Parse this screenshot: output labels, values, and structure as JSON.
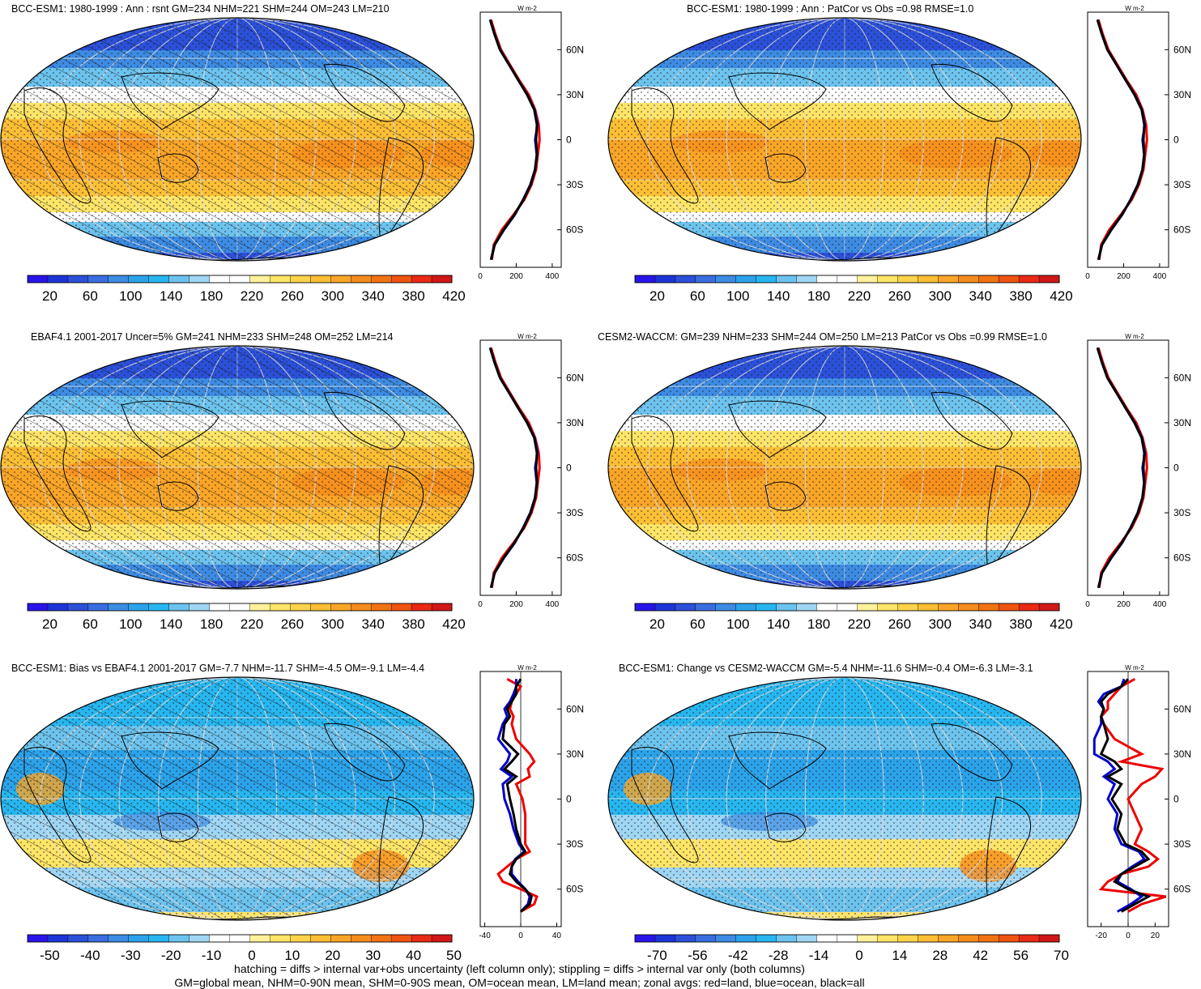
{
  "panels": [
    {
      "title": "BCC-ESM1: 1980-1999 : Ann : rsnt GM=234 NHM=221 SHM=244 OM=243 LM=210",
      "kind": "abs",
      "hatch": true,
      "colorbar_ticks": [
        "20",
        "60",
        "100",
        "140",
        "180",
        "220",
        "260",
        "300",
        "340",
        "380",
        "420"
      ],
      "profile_xticks": [
        "0",
        "200",
        "400"
      ],
      "profile_xlim": [
        0,
        450
      ],
      "profile_unit": "W m-2"
    },
    {
      "title": "BCC-ESM1: 1980-1999 : Ann : PatCor vs Obs =0.98 RMSE=1.0",
      "kind": "abs",
      "hatch": false,
      "colorbar_ticks": [
        "20",
        "60",
        "100",
        "140",
        "180",
        "220",
        "260",
        "300",
        "340",
        "380",
        "420"
      ],
      "profile_xticks": [
        "0",
        "200",
        "400"
      ],
      "profile_xlim": [
        0,
        450
      ],
      "profile_unit": "W m-2"
    },
    {
      "title": "EBAF4.1 2001-2017 Uncer=5% GM=241 NHM=233 SHM=248 OM=252 LM=214",
      "kind": "abs",
      "hatch": true,
      "colorbar_ticks": [
        "20",
        "60",
        "100",
        "140",
        "180",
        "220",
        "260",
        "300",
        "340",
        "380",
        "420"
      ],
      "profile_xticks": [
        "0",
        "200",
        "400"
      ],
      "profile_xlim": [
        0,
        450
      ],
      "profile_unit": "W m-2"
    },
    {
      "title": "CESM2-WACCM: GM=239 NHM=233 SHM=244 OM=250 LM=213 PatCor vs Obs =0.99 RMSE=1.0",
      "kind": "abs",
      "hatch": false,
      "colorbar_ticks": [
        "20",
        "60",
        "100",
        "140",
        "180",
        "220",
        "260",
        "300",
        "340",
        "380",
        "420"
      ],
      "profile_xticks": [
        "0",
        "200",
        "400"
      ],
      "profile_xlim": [
        0,
        450
      ],
      "profile_unit": "W m-2"
    },
    {
      "title": "BCC-ESM1: Bias vs EBAF4.1 2001-2017 GM=-7.7 NHM=-11.7 SHM=-4.5 OM=-9.1 LM=-4.4",
      "kind": "diff",
      "hatch": true,
      "colorbar_ticks": [
        "-50",
        "-40",
        "-30",
        "-20",
        "-10",
        "0",
        "10",
        "20",
        "30",
        "40",
        "50"
      ],
      "profile_xticks": [
        "-40",
        "0",
        "40"
      ],
      "profile_xlim": [
        -45,
        45
      ],
      "profile_unit": "W m-2"
    },
    {
      "title": "BCC-ESM1: Change vs CESM2-WACCM GM=-5.4 NHM=-11.6 SHM=-0.4 OM=-6.3 LM=-3.1",
      "kind": "diff",
      "hatch": false,
      "colorbar_ticks": [
        "-70",
        "-56",
        "-42",
        "-28",
        "-14",
        "0",
        "14",
        "28",
        "42",
        "56",
        "70"
      ],
      "profile_xticks": [
        "-20",
        "0",
        "20"
      ],
      "profile_xlim": [
        -30,
        30
      ],
      "profile_unit": "W m-2"
    }
  ],
  "chart_data": {
    "type": "heatmap",
    "latitude_ticks": [
      "60N",
      "30N",
      "0",
      "30S",
      "60S"
    ],
    "latitude_values": [
      60,
      30,
      0,
      -30,
      -60
    ],
    "colorbar_colors": [
      "#2a14ea",
      "#1b35d8",
      "#2b50d9",
      "#3a6ee0",
      "#3d8be3",
      "#2ba3ea",
      "#27b6ef",
      "#6cc3ee",
      "#9fd6f4",
      "#ffffff",
      "#ffffff",
      "#fff29a",
      "#ffe567",
      "#fdd34a",
      "#fcbf35",
      "#f9a527",
      "#f68c1c",
      "#f27312",
      "#ef5411",
      "#e92a15",
      "#d11717"
    ],
    "profile_abs": {
      "lat": [
        -80,
        -70,
        -60,
        -50,
        -40,
        -30,
        -20,
        -10,
        0,
        10,
        20,
        30,
        40,
        50,
        60,
        70,
        80
      ],
      "all": [
        60,
        80,
        130,
        190,
        240,
        280,
        305,
        315,
        310,
        315,
        300,
        260,
        210,
        160,
        110,
        80,
        55
      ],
      "land": [
        65,
        75,
        120,
        185,
        245,
        285,
        310,
        320,
        330,
        325,
        305,
        270,
        215,
        165,
        115,
        85,
        60
      ],
      "ocean": [
        60,
        80,
        132,
        192,
        238,
        278,
        304,
        314,
        305,
        318,
        302,
        262,
        210,
        160,
        110,
        80,
        55
      ]
    },
    "profile_bias": {
      "lat": [
        -75,
        -70,
        -65,
        -60,
        -55,
        -50,
        -45,
        -40,
        -35,
        -30,
        -20,
        -10,
        0,
        10,
        15,
        20,
        25,
        30,
        40,
        50,
        55,
        60,
        65,
        70,
        75,
        80
      ],
      "all": [
        0,
        10,
        12,
        5,
        -5,
        -12,
        -10,
        -5,
        5,
        0,
        -5,
        -8,
        -12,
        -15,
        -5,
        -18,
        -10,
        -3,
        -20,
        -18,
        -12,
        -15,
        -10,
        -5,
        -5,
        0
      ],
      "land": [
        0,
        15,
        18,
        0,
        -20,
        -25,
        -15,
        -5,
        10,
        5,
        5,
        5,
        2,
        -5,
        10,
        8,
        15,
        10,
        -5,
        -10,
        -8,
        -12,
        -10,
        -5,
        0,
        -15
      ],
      "ocean": [
        0,
        8,
        10,
        5,
        -3,
        -10,
        -10,
        -6,
        4,
        -2,
        -8,
        -12,
        -18,
        -20,
        -10,
        -22,
        -15,
        -12,
        -25,
        -20,
        -15,
        -18,
        -12,
        -8,
        -5,
        -5
      ]
    },
    "profile_change": {
      "lat": [
        -75,
        -70,
        -65,
        -60,
        -55,
        -50,
        -45,
        -40,
        -35,
        -30,
        -20,
        -10,
        0,
        10,
        15,
        20,
        25,
        30,
        40,
        50,
        55,
        60,
        65,
        70,
        75,
        80
      ],
      "all": [
        -5,
        5,
        15,
        0,
        -10,
        -5,
        5,
        15,
        10,
        -2,
        -8,
        -5,
        -12,
        -5,
        -15,
        -5,
        -10,
        -20,
        -15,
        -18,
        -20,
        -18,
        -20,
        -15,
        -5,
        0
      ],
      "land": [
        0,
        10,
        28,
        -20,
        -15,
        -5,
        15,
        22,
        15,
        5,
        10,
        5,
        0,
        10,
        20,
        25,
        -5,
        10,
        -10,
        -18,
        -20,
        -15,
        -15,
        -10,
        -5,
        5
      ],
      "ocean": [
        -8,
        2,
        10,
        2,
        -8,
        -5,
        3,
        12,
        8,
        -5,
        -10,
        -8,
        -15,
        -10,
        -18,
        -10,
        -15,
        -25,
        -25,
        -20,
        -20,
        -18,
        -22,
        -18,
        -5,
        -3
      ]
    }
  },
  "footer": {
    "line1": "hatching = diffs > internal var+obs uncertainty (left column only); stippling = diffs > internal var only (both columns)",
    "line2": "GM=global mean, NHM=0-90N mean, SHM=0-90S mean, OM=ocean mean, LM=land mean; zonal avgs: red=land, blue=ocean, black=all"
  }
}
